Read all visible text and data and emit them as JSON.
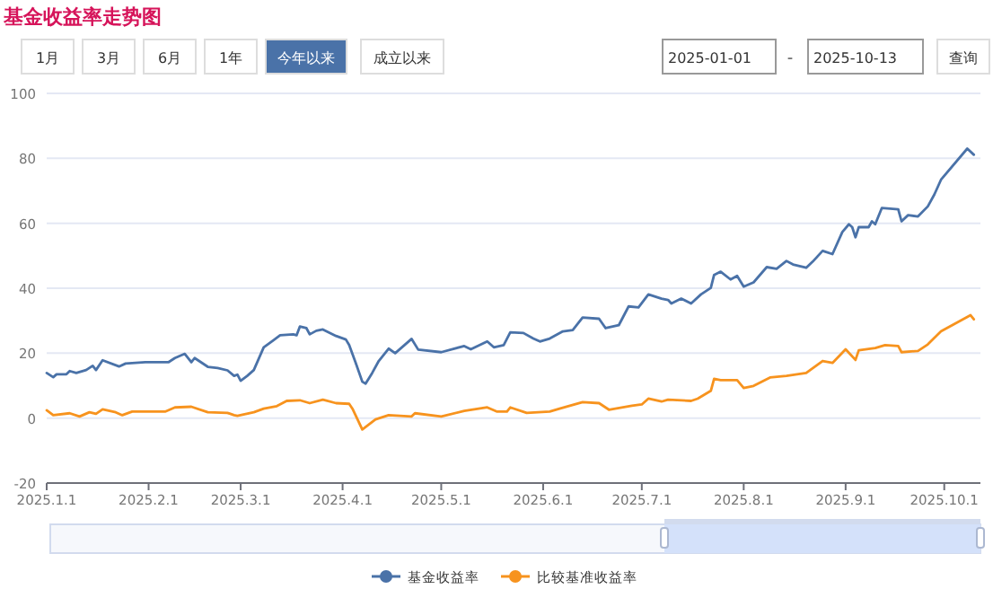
{
  "chart_data": {
    "type": "line",
    "title": "基金收益率走势图",
    "annotations": [
      "1月",
      "3月",
      "6月",
      "1年",
      "今年以来",
      "成立以来",
      "2025-01-01",
      "-",
      "2025-10-13",
      "查询"
    ],
    "xlim": [
      "2025-01-01",
      "2025-10-12"
    ],
    "xticks": [
      {
        "value": "2025-01-01",
        "label": "2025.1.1"
      },
      {
        "value": "2025-02-01",
        "label": "2025.2.1"
      },
      {
        "value": "2025-03-01",
        "label": "2025.3.1"
      },
      {
        "value": "2025-04-01",
        "label": "2025.4.1"
      },
      {
        "value": "2025-05-01",
        "label": "2025.5.1"
      },
      {
        "value": "2025-06-01",
        "label": "2025.6.1"
      },
      {
        "value": "2025-07-01",
        "label": "2025.7.1"
      },
      {
        "value": "2025-08-01",
        "label": "2025.8.1"
      },
      {
        "value": "2025-09-01",
        "label": "2025.9.1"
      },
      {
        "value": "2025-10-01",
        "label": "2025.10.1"
      }
    ],
    "ylim": [
      -20,
      100
    ],
    "yticks": [
      -20,
      0,
      20,
      40,
      60,
      80,
      100
    ],
    "grid": "y",
    "legend": "bottom",
    "marker": "none",
    "line_style": "solid",
    "series": [
      {
        "name": "基金收益率",
        "color": "#4a72a8",
        "x": [
          "2025-01-01",
          "2025-01-03",
          "2025-01-04",
          "2025-01-07",
          "2025-01-08",
          "2025-01-10",
          "2025-01-13",
          "2025-01-15",
          "2025-01-16",
          "2025-01-18",
          "2025-01-23",
          "2025-01-25",
          "2025-01-31",
          "2025-02-07",
          "2025-02-09",
          "2025-02-12",
          "2025-02-14",
          "2025-02-15",
          "2025-02-19",
          "2025-02-22",
          "2025-02-25",
          "2025-02-27",
          "2025-02-28",
          "2025-03-01",
          "2025-03-03",
          "2025-03-05",
          "2025-03-08",
          "2025-03-11",
          "2025-03-13",
          "2025-03-17",
          "2025-03-18",
          "2025-03-19",
          "2025-03-21",
          "2025-03-22",
          "2025-03-24",
          "2025-03-26",
          "2025-03-30",
          "2025-04-02",
          "2025-04-03",
          "2025-04-05",
          "2025-04-07",
          "2025-04-08",
          "2025-04-10",
          "2025-04-12",
          "2025-04-15",
          "2025-04-17",
          "2025-04-22",
          "2025-04-24",
          "2025-05-01",
          "2025-05-08",
          "2025-05-10",
          "2025-05-15",
          "2025-05-17",
          "2025-05-20",
          "2025-05-22",
          "2025-05-26",
          "2025-05-29",
          "2025-05-31",
          "2025-06-03",
          "2025-06-07",
          "2025-06-10",
          "2025-06-13",
          "2025-06-18",
          "2025-06-20",
          "2025-06-24",
          "2025-06-27",
          "2025-06-30",
          "2025-07-03",
          "2025-07-07",
          "2025-07-09",
          "2025-07-10",
          "2025-07-13",
          "2025-07-16",
          "2025-07-19",
          "2025-07-22",
          "2025-07-23",
          "2025-07-25",
          "2025-07-28",
          "2025-07-30",
          "2025-08-01",
          "2025-08-04",
          "2025-08-08",
          "2025-08-11",
          "2025-08-14",
          "2025-08-16",
          "2025-08-20",
          "2025-08-22",
          "2025-08-25",
          "2025-08-28",
          "2025-08-31",
          "2025-09-02",
          "2025-09-03",
          "2025-09-04",
          "2025-09-05",
          "2025-09-08",
          "2025-09-09",
          "2025-09-10",
          "2025-09-12",
          "2025-09-17",
          "2025-09-18",
          "2025-09-20",
          "2025-09-23",
          "2025-09-26",
          "2025-09-28",
          "2025-09-30",
          "2025-10-08",
          "2025-10-10"
        ],
        "values": [
          13.9,
          12.6,
          13.5,
          13.5,
          14.5,
          13.9,
          14.8,
          16.1,
          14.8,
          17.8,
          15.9,
          16.8,
          17.2,
          17.2,
          18.5,
          19.8,
          17.2,
          18.5,
          15.8,
          15.4,
          14.7,
          13.0,
          13.4,
          11.5,
          13.0,
          14.8,
          21.8,
          24.0,
          25.5,
          25.8,
          25.5,
          28.2,
          27.7,
          25.8,
          26.9,
          27.3,
          25.3,
          24.2,
          22.5,
          17.0,
          11.2,
          10.6,
          13.9,
          17.6,
          21.4,
          20.0,
          24.4,
          21.1,
          20.3,
          22.2,
          21.2,
          23.6,
          21.8,
          22.5,
          26.4,
          26.2,
          24.5,
          23.6,
          24.5,
          26.7,
          27.1,
          31.0,
          30.6,
          27.7,
          28.6,
          34.4,
          34.1,
          38.1,
          36.8,
          36.4,
          35.3,
          36.8,
          35.3,
          38.1,
          40.1,
          44.1,
          45.1,
          42.7,
          43.8,
          40.5,
          41.8,
          46.5,
          46.0,
          48.4,
          47.3,
          46.3,
          48.2,
          51.5,
          50.5,
          57.3,
          59.7,
          58.8,
          55.7,
          58.8,
          58.8,
          60.6,
          59.7,
          64.7,
          64.3,
          60.6,
          62.5,
          62.1,
          65.2,
          68.9,
          73.4,
          83.0,
          81.1
        ]
      },
      {
        "name": "比较基准收益率",
        "color": "#f7931e",
        "x": [
          "2025-01-01",
          "2025-01-03",
          "2025-01-08",
          "2025-01-11",
          "2025-01-14",
          "2025-01-16",
          "2025-01-18",
          "2025-01-22",
          "2025-01-24",
          "2025-01-27",
          "2025-02-06",
          "2025-02-09",
          "2025-02-14",
          "2025-02-19",
          "2025-02-25",
          "2025-02-27",
          "2025-02-28",
          "2025-03-05",
          "2025-03-08",
          "2025-03-12",
          "2025-03-15",
          "2025-03-19",
          "2025-03-22",
          "2025-03-26",
          "2025-03-30",
          "2025-04-03",
          "2025-04-04",
          "2025-04-07",
          "2025-04-11",
          "2025-04-15",
          "2025-04-22",
          "2025-04-23",
          "2025-05-01",
          "2025-05-08",
          "2025-05-15",
          "2025-05-18",
          "2025-05-21",
          "2025-05-22",
          "2025-05-27",
          "2025-06-03",
          "2025-06-06",
          "2025-06-13",
          "2025-06-18",
          "2025-06-21",
          "2025-06-28",
          "2025-07-01",
          "2025-07-03",
          "2025-07-07",
          "2025-07-09",
          "2025-07-16",
          "2025-07-18",
          "2025-07-22",
          "2025-07-23",
          "2025-07-25",
          "2025-07-30",
          "2025-08-01",
          "2025-08-04",
          "2025-08-09",
          "2025-08-14",
          "2025-08-20",
          "2025-08-25",
          "2025-08-28",
          "2025-09-01",
          "2025-09-04",
          "2025-09-05",
          "2025-09-10",
          "2025-09-13",
          "2025-09-17",
          "2025-09-18",
          "2025-09-23",
          "2025-09-26",
          "2025-09-30",
          "2025-10-09",
          "2025-10-10"
        ],
        "values": [
          2.4,
          0.9,
          1.5,
          0.5,
          1.8,
          1.3,
          2.7,
          1.8,
          0.9,
          2.0,
          2.0,
          3.3,
          3.5,
          1.8,
          1.6,
          0.9,
          0.7,
          1.8,
          2.9,
          3.7,
          5.3,
          5.5,
          4.6,
          5.7,
          4.6,
          4.4,
          2.9,
          -3.5,
          -0.4,
          0.9,
          0.5,
          1.5,
          0.5,
          2.2,
          3.3,
          2.0,
          2.0,
          3.3,
          1.6,
          2.0,
          2.9,
          4.9,
          4.6,
          2.6,
          3.8,
          4.2,
          6.0,
          5.1,
          5.7,
          5.3,
          6.0,
          8.4,
          12.1,
          11.7,
          11.7,
          9.3,
          9.9,
          12.5,
          13.0,
          13.9,
          17.6,
          17.0,
          21.2,
          17.9,
          20.9,
          21.6,
          22.5,
          22.2,
          20.3,
          20.7,
          22.7,
          26.7,
          31.7,
          30.4
        ]
      }
    ]
  }
}
